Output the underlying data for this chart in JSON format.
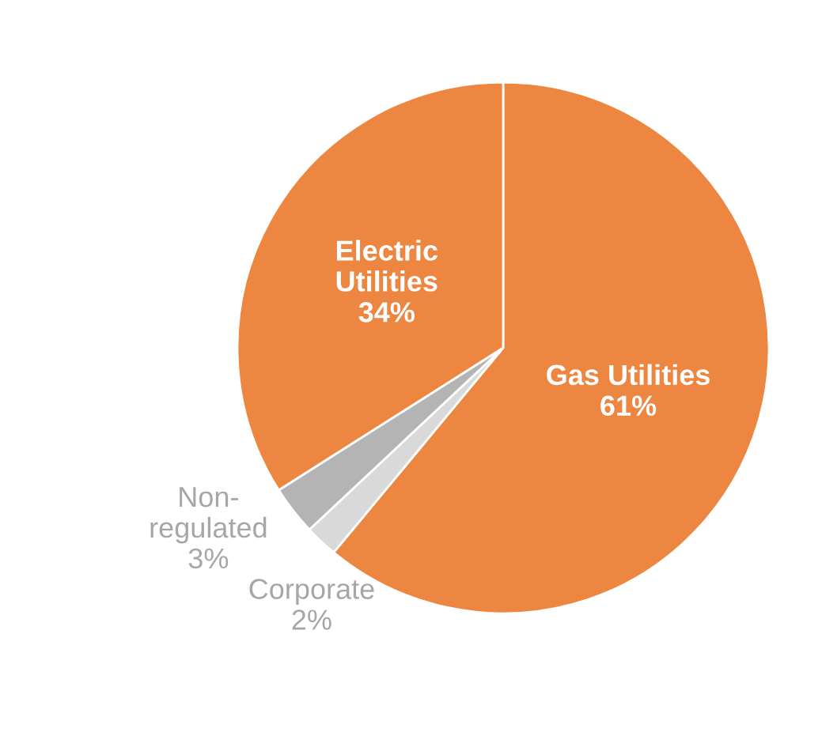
{
  "chart_data": {
    "type": "pie",
    "categories": [
      "Gas Utilities",
      "Corporate",
      "Non-\nregulated",
      "Electric\nUtilities"
    ],
    "values": [
      61,
      2,
      3,
      34
    ],
    "colors": [
      "#ed8640",
      "#d9d9d9",
      "#b4b4b4",
      "#ed8640"
    ],
    "value_labels": [
      "61%",
      "2%",
      "3%",
      "34%"
    ],
    "legend": false
  }
}
